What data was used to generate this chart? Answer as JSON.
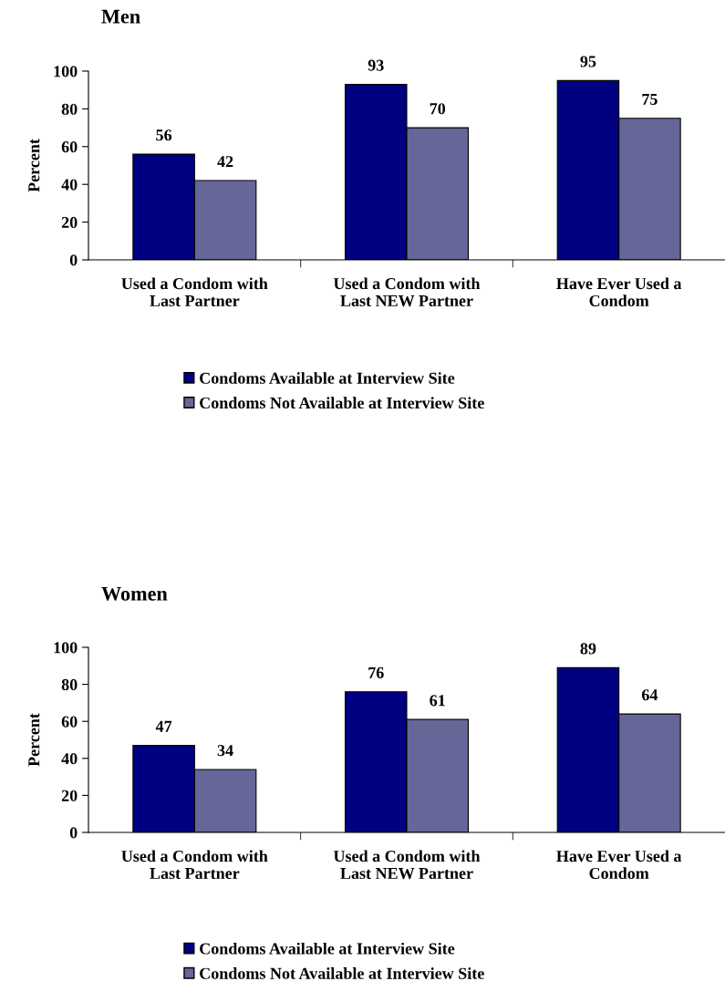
{
  "chart_data": [
    {
      "type": "bar",
      "title": "Men",
      "ylabel": "Percent",
      "categories": [
        "Used a Condom with\nLast Partner",
        "Used a Condom with\nLast NEW Partner",
        "Have Ever Used a\nCondom"
      ],
      "series": [
        {
          "name": "Condoms Available at Interview Site",
          "color": "#000080",
          "values": [
            56,
            93,
            95
          ]
        },
        {
          "name": "Condoms Not Available at Interview Site",
          "color": "#666699",
          "values": [
            42,
            70,
            75
          ]
        }
      ],
      "ylim": [
        0,
        100
      ],
      "yticks": [
        0,
        20,
        40,
        60,
        80,
        100
      ],
      "data_labels": true,
      "legend": "bottom",
      "grid": false
    },
    {
      "type": "bar",
      "title": "Women",
      "ylabel": "Percent",
      "categories": [
        "Used a Condom with\nLast Partner",
        "Used a Condom with\nLast NEW Partner",
        "Have Ever Used a\nCondom"
      ],
      "series": [
        {
          "name": "Condoms Available at Interview Site",
          "color": "#000080",
          "values": [
            47,
            76,
            89
          ]
        },
        {
          "name": "Condoms Not Available at Interview Site",
          "color": "#666699",
          "values": [
            34,
            61,
            64
          ]
        }
      ],
      "ylim": [
        0,
        100
      ],
      "yticks": [
        0,
        20,
        40,
        60,
        80,
        100
      ],
      "data_labels": true,
      "legend": "bottom",
      "grid": false
    }
  ]
}
